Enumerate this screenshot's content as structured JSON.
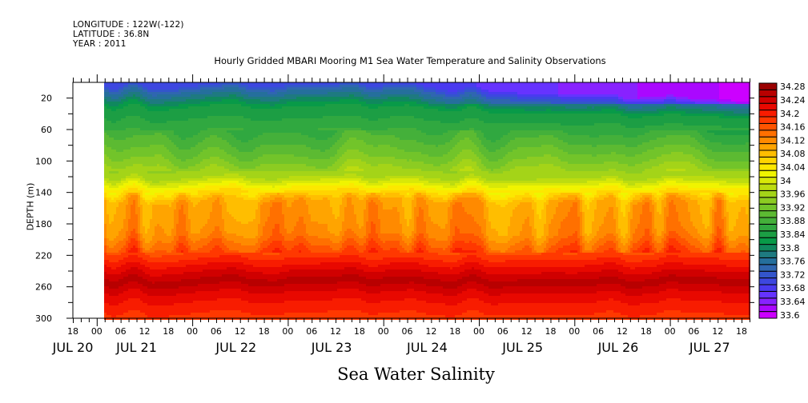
{
  "header": {
    "longitude": "LONGITUDE : 122W(-122)",
    "latitude": "LATITUDE : 36.8N",
    "year": "YEAR : 2011"
  },
  "chart_data": {
    "type": "heatmap",
    "title": "Hourly Gridded MBARI Mooring M1 Sea Water Temperature and Salinity Observations",
    "xlabel": "Sea Water Salinity",
    "ylabel": "DEPTH (m)",
    "x_axis": {
      "range": [
        "JUL 20 18:00",
        "JUL 27 20:00"
      ],
      "data_start": "JUL 21 02:00",
      "hour_ticks": [
        "18",
        "00",
        "06",
        "12",
        "18",
        "00",
        "06",
        "12",
        "18",
        "00",
        "06",
        "12",
        "18",
        "00",
        "06",
        "12",
        "18",
        "00",
        "06",
        "12",
        "18",
        "00",
        "06",
        "12",
        "18",
        "00",
        "06",
        "12",
        "18"
      ],
      "day_labels": [
        "JUL 20",
        "JUL 21",
        "JUL 22",
        "JUL 23",
        "JUL 24",
        "JUL 25",
        "JUL 26",
        "JUL 27"
      ]
    },
    "y_axis": {
      "range": [
        300,
        0
      ],
      "inverted": true,
      "tick_labels": [
        "20",
        "60",
        "100",
        "140",
        "180",
        "220",
        "260",
        "300"
      ]
    },
    "colorbar": {
      "levels": [
        33.6,
        33.62,
        33.64,
        33.66,
        33.68,
        33.7,
        33.72,
        33.74,
        33.76,
        33.78,
        33.8,
        33.82,
        33.84,
        33.86,
        33.88,
        33.9,
        33.92,
        33.94,
        33.96,
        33.98,
        34.0,
        34.02,
        34.04,
        34.06,
        34.08,
        34.1,
        34.12,
        34.14,
        34.16,
        34.18,
        34.2,
        34.22,
        34.24,
        34.26,
        34.28,
        34.3
      ],
      "labels": [
        "34.28",
        "34.24",
        "34.2",
        "34.16",
        "34.12",
        "34.08",
        "34.04",
        "34",
        "33.96",
        "33.92",
        "33.88",
        "33.84",
        "33.8",
        "33.76",
        "33.72",
        "33.68",
        "33.64",
        "33.6"
      ],
      "colors": [
        "#cc00ff",
        "#aa08ff",
        "#8822ff",
        "#6633ff",
        "#4a3af0",
        "#3d47e0",
        "#3355cc",
        "#2f66b0",
        "#256f9c",
        "#1e7a80",
        "#10885e",
        "#089a48",
        "#1c9e44",
        "#30a840",
        "#44b03a",
        "#5cba32",
        "#72c42a",
        "#8ccc22",
        "#a4d418",
        "#bcdc10",
        "#d8e808",
        "#f0f400",
        "#fce800",
        "#ffd400",
        "#ffbe00",
        "#ffa400",
        "#ff8a00",
        "#ff7000",
        "#ff5400",
        "#ff3800",
        "#f81c00",
        "#e80800",
        "#d00000",
        "#b80000",
        "#9a0000"
      ]
    },
    "description": "Depth-time contour of salinity: ~33.6-33.8 (blue/purple) near surface, 33.84-33.96 (green) 20-110 m, ~34.0-34.08 (yellow) ~130 m, 34.1-34.16 (orange) 140-210 m, maximum ~34.26-34.28 (dark red) near 250 m, ~34.18-34.2 at 300 m. Fresher surface layer deepens after JUL 24."
  }
}
